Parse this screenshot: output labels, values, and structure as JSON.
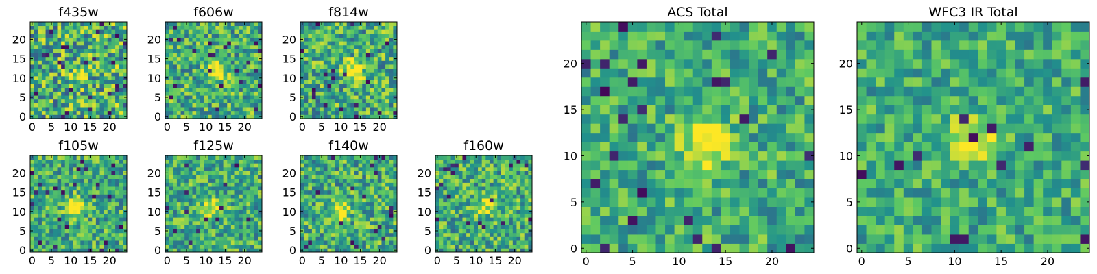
{
  "figure": {
    "colormap": "viridis",
    "colors": {
      "axis": "#000000",
      "background": "#ffffff",
      "viridis_stops": [
        "#440154",
        "#3b528b",
        "#21918c",
        "#5ec962",
        "#fde725"
      ]
    }
  },
  "chart_data": [
    {
      "type": "heatmap",
      "title": "f435w",
      "grid_size": 25,
      "xticks": [
        0,
        5,
        10,
        15,
        20
      ],
      "yticks": [
        0,
        5,
        10,
        15,
        20
      ],
      "xlim": [
        0,
        24
      ],
      "ylim": [
        0,
        24
      ],
      "source_center": [
        12,
        11
      ],
      "source_amplitude": 0.3,
      "noise_level": 0.72
    },
    {
      "type": "heatmap",
      "title": "f606w",
      "grid_size": 25,
      "xticks": [
        0,
        5,
        10,
        15,
        20
      ],
      "yticks": [
        0,
        5,
        10,
        15,
        20
      ],
      "xlim": [
        0,
        24
      ],
      "ylim": [
        0,
        24
      ],
      "source_center": [
        13,
        12
      ],
      "source_amplitude": 0.55,
      "noise_level": 0.6
    },
    {
      "type": "heatmap",
      "title": "f814w",
      "grid_size": 25,
      "xticks": [
        0,
        5,
        10,
        15,
        20
      ],
      "yticks": [
        0,
        5,
        10,
        15,
        20
      ],
      "xlim": [
        0,
        24
      ],
      "ylim": [
        0,
        24
      ],
      "source_center": [
        13,
        12
      ],
      "source_amplitude": 0.55,
      "noise_level": 0.62
    },
    {
      "type": "heatmap",
      "title": "f105w",
      "grid_size": 25,
      "xticks": [
        0,
        5,
        10,
        15,
        20
      ],
      "yticks": [
        0,
        5,
        10,
        15,
        20
      ],
      "xlim": [
        0,
        24
      ],
      "ylim": [
        0,
        24
      ],
      "source_center": [
        11,
        11
      ],
      "source_amplitude": 0.55,
      "noise_level": 0.55
    },
    {
      "type": "heatmap",
      "title": "f125w",
      "grid_size": 25,
      "xticks": [
        0,
        5,
        10,
        15,
        20
      ],
      "yticks": [
        0,
        5,
        10,
        15,
        20
      ],
      "xlim": [
        0,
        24
      ],
      "ylim": [
        0,
        24
      ],
      "source_center": [
        12,
        11
      ],
      "source_amplitude": 0.4,
      "noise_level": 0.55
    },
    {
      "type": "heatmap",
      "title": "f140w",
      "grid_size": 25,
      "xticks": [
        0,
        5,
        10,
        15,
        20
      ],
      "yticks": [
        0,
        5,
        10,
        15,
        20
      ],
      "xlim": [
        0,
        24
      ],
      "ylim": [
        0,
        24
      ],
      "source_center": [
        10,
        10
      ],
      "source_amplitude": 0.45,
      "noise_level": 0.58
    },
    {
      "type": "heatmap",
      "title": "f160w",
      "grid_size": 25,
      "xticks": [
        0,
        5,
        10,
        15,
        20
      ],
      "yticks": [
        0,
        5,
        10,
        15,
        20
      ],
      "xlim": [
        0,
        24
      ],
      "ylim": [
        0,
        24
      ],
      "source_center": [
        13,
        12
      ],
      "source_amplitude": 0.4,
      "noise_level": 0.58
    },
    {
      "type": "heatmap",
      "title": "ACS Total",
      "grid_size": 25,
      "xticks": [
        0,
        5,
        10,
        15,
        20
      ],
      "yticks": [
        0,
        5,
        10,
        15,
        20
      ],
      "xlim": [
        0,
        24
      ],
      "ylim": [
        0,
        24
      ],
      "source_center": [
        13,
        11.5
      ],
      "source_amplitude": 0.6,
      "noise_level": 0.48
    },
    {
      "type": "heatmap",
      "title": "WFC3 IR Total",
      "grid_size": 25,
      "xticks": [
        0,
        5,
        10,
        15,
        20
      ],
      "yticks": [
        0,
        5,
        10,
        15,
        20
      ],
      "xlim": [
        0,
        24
      ],
      "ylim": [
        0,
        24
      ],
      "source_center": [
        12,
        11.5
      ],
      "source_amplitude": 0.5,
      "noise_level": 0.45
    }
  ]
}
